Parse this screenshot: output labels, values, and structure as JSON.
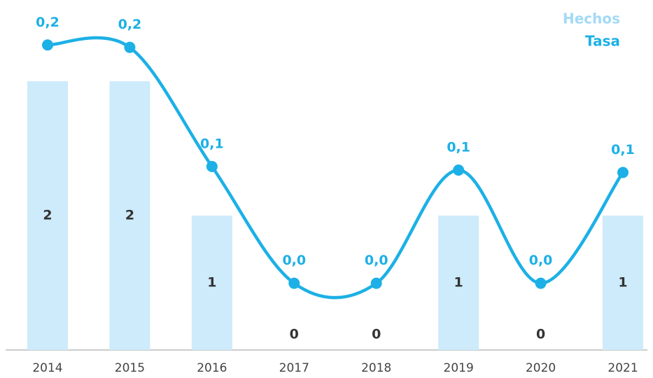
{
  "chart_data": {
    "type": "bar-line",
    "categories": [
      "2014",
      "2015",
      "2016",
      "2017",
      "2018",
      "2019",
      "2020",
      "2021"
    ],
    "series": [
      {
        "name": "Hechos",
        "color": "#cdebfa",
        "values": [
          2,
          2,
          1,
          0,
          0,
          1,
          0,
          1
        ]
      },
      {
        "name": "Tasa",
        "color": "#1cb0e6",
        "axis": "y2",
        "values": [
          0.2,
          0.198,
          0.098,
          0,
          0,
          0.095,
          0,
          0.093
        ],
        "value_labels": [
          "0,2",
          "0,2",
          "0,1",
          "0,0",
          "0,0",
          "0,1",
          "0,0",
          "0,1"
        ]
      }
    ],
    "ylim": [
      0,
      2.5
    ],
    "y2lim": [
      -0.056,
      0.226
    ],
    "legend": "top-right"
  }
}
